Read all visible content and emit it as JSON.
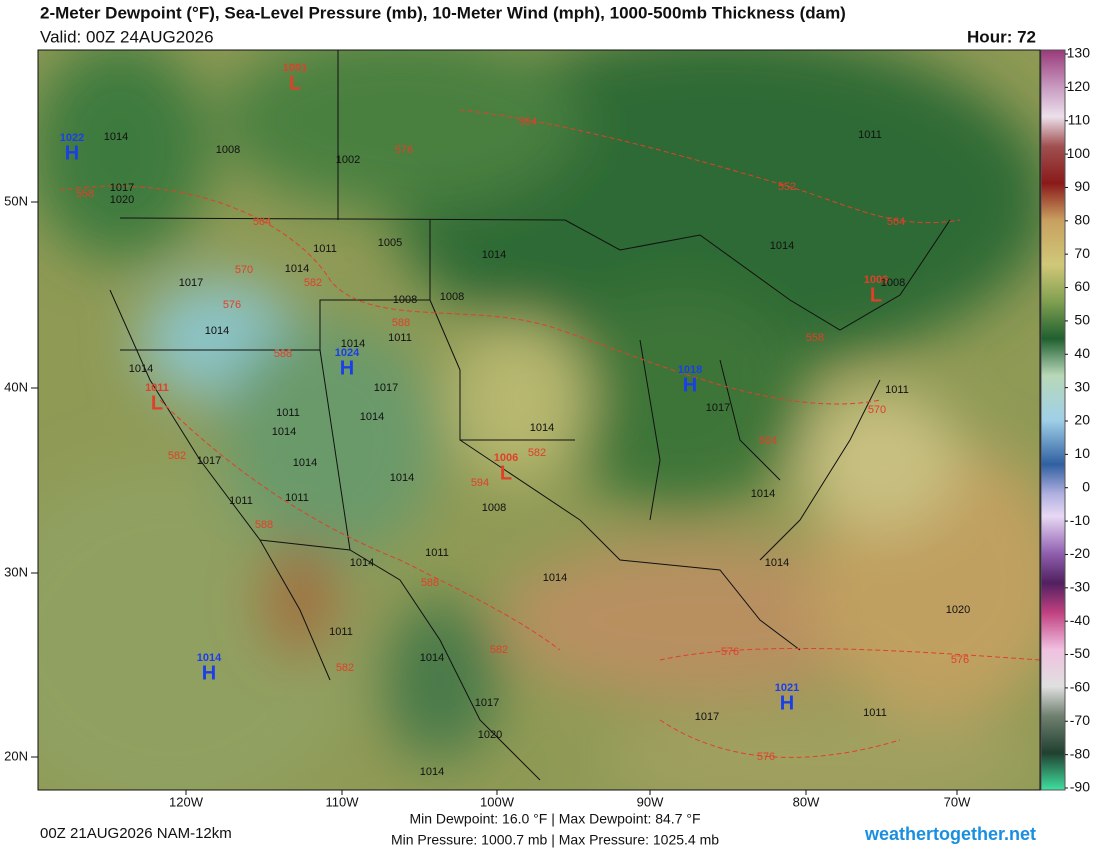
{
  "header": {
    "title": "2-Meter Dewpoint (°F), Sea-Level Pressure (mb), 10-Meter Wind (mph), 1000-500mb Thickness (dam)",
    "valid": "Valid: 00Z 24AUG2026",
    "hour": "Hour: 72"
  },
  "map": {
    "lat_labels": [
      "50N",
      "40N",
      "30N",
      "20N"
    ],
    "lon_labels": [
      "120W",
      "110W",
      "100W",
      "90W",
      "80W",
      "70W"
    ],
    "highs": [
      {
        "value": "1022",
        "letter": "H"
      },
      {
        "value": "1024",
        "letter": "H"
      },
      {
        "value": "1018",
        "letter": "H"
      },
      {
        "value": "1014",
        "letter": "H"
      },
      {
        "value": "1021",
        "letter": "H"
      }
    ],
    "lows": [
      {
        "value": "1001",
        "letter": "L"
      },
      {
        "value": "1011",
        "letter": "L"
      },
      {
        "value": "1006",
        "letter": "L"
      },
      {
        "value": "1006",
        "letter": "L"
      }
    ],
    "isobar_labels": [
      "1014",
      "1008",
      "1002",
      "1017",
      "1020",
      "1011",
      "1014",
      "1017",
      "1014",
      "1008",
      "1008",
      "1014",
      "1011",
      "1014",
      "1014",
      "1017",
      "1011",
      "1014",
      "1014",
      "1017",
      "1014",
      "1014",
      "1011",
      "1011",
      "1008",
      "1011",
      "1014",
      "1014",
      "1017",
      "1014",
      "1011",
      "1014",
      "1014",
      "1014",
      "1020",
      "1011",
      "1014",
      "1017",
      "1020",
      "1014",
      "1017",
      "1011",
      "1011",
      "1008",
      "1005"
    ],
    "thickness_labels": [
      "564",
      "576",
      "558",
      "564",
      "570",
      "582",
      "576",
      "588",
      "588",
      "582",
      "582",
      "594",
      "588",
      "588",
      "582",
      "582",
      "576",
      "576",
      "576",
      "552",
      "564",
      "558",
      "564",
      "570"
    ]
  },
  "colorbar": {
    "ticks": [
      130,
      120,
      110,
      100,
      90,
      80,
      70,
      60,
      50,
      40,
      30,
      20,
      10,
      0,
      -10,
      -20,
      -30,
      -40,
      -50,
      -60,
      -70,
      -80,
      -90
    ]
  },
  "footer": {
    "run": "00Z 21AUG2026 NAM-12km",
    "dewpoint_range": "Min Dewpoint: 16.0 °F | Max Dewpoint: 84.7 °F",
    "pressure_range": "Min Pressure: 1000.7 mb | Max Pressure: 1025.4 mb",
    "site": "weathertogether.net"
  }
}
